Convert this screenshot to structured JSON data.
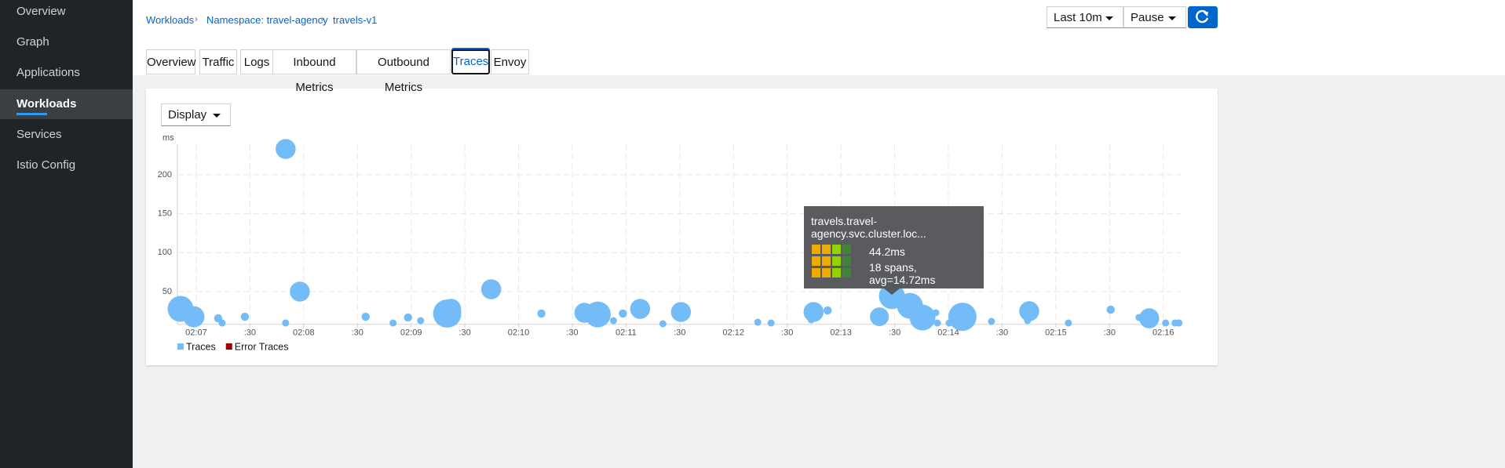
{
  "nav": {
    "items": [
      "Overview",
      "Graph",
      "Applications",
      "Workloads",
      "Services",
      "Istio Config"
    ],
    "active": 3
  },
  "breadcrumbs": [
    "Workloads",
    "Namespace: travel-agency",
    "travels-v1"
  ],
  "toolbar": {
    "interval": "Last 10m",
    "refresh": "Pause"
  },
  "tabs": {
    "items": [
      "Overview",
      "Traffic",
      "Logs",
      "Inbound Metrics",
      "Outbound Metrics",
      "Traces",
      "Envoy"
    ],
    "active": 5
  },
  "display": "Display",
  "tooltip": {
    "title": "travels.travel-agency.svc.cluster.loc...",
    "duration": "44.2ms",
    "spans": "18 spans, avg=14.72ms"
  },
  "chart_data": {
    "type": "scatter",
    "y_label": "ms",
    "xlim": [
      6.825,
      16.17
    ],
    "ylim": [
      8,
      240
    ],
    "xticks": [
      {
        "value": 7,
        "label": "02:07"
      },
      {
        "value": 7.5,
        "label": ":30"
      },
      {
        "value": 8,
        "label": "02:08"
      },
      {
        "value": 8.5,
        "label": ":30"
      },
      {
        "value": 9,
        "label": "02:09"
      },
      {
        "value": 9.5,
        "label": ":30"
      },
      {
        "value": 10,
        "label": "02:10"
      },
      {
        "value": 10.5,
        "label": ":30"
      },
      {
        "value": 11,
        "label": "02:11"
      },
      {
        "value": 11.5,
        "label": ":30"
      },
      {
        "value": 12,
        "label": "02:12"
      },
      {
        "value": 12.5,
        "label": ":30"
      },
      {
        "value": 13,
        "label": "02:13"
      },
      {
        "value": 13.5,
        "label": ":30"
      },
      {
        "value": 14,
        "label": "02:14"
      },
      {
        "value": 14.5,
        "label": ":30"
      },
      {
        "value": 15,
        "label": "02:15"
      },
      {
        "value": 15.5,
        "label": ":30"
      },
      {
        "value": 16,
        "label": "02:16"
      }
    ],
    "yticks": [
      50,
      100,
      150,
      200
    ],
    "grid": true,
    "series": [
      {
        "name": "Traces",
        "color": "#73bcf7",
        "x": [
          6.854,
          6.978,
          7.204,
          7.241,
          7.453,
          7.832,
          7.832,
          7.964,
          8.577,
          8.832,
          8.971,
          9.088,
          9.336,
          9.372,
          9.745,
          10.212,
          10.613,
          10.737,
          10.883,
          10.971,
          11.131,
          11.343,
          11.511,
          12.226,
          12.35,
          12.745,
          12.876,
          12.723,
          13.358,
          13.474,
          13.642,
          13.759,
          13.883,
          13.898,
          14.007,
          14.131,
          14.401,
          14.752,
          14.737,
          15.117,
          15.511,
          15.774,
          15.869,
          16.022,
          16.109,
          16.146
        ],
        "y": [
          27.8,
          17.7,
          15.7,
          9.7,
          17.7,
          233.2,
          9.7,
          50,
          17.7,
          9.7,
          16.7,
          12.7,
          21.8,
          27.8,
          53,
          21.8,
          22.8,
          20.7,
          12.7,
          21.8,
          27.8,
          8.7,
          23.8,
          10.7,
          9.7,
          23.8,
          25.8,
          13.7,
          17.7,
          44.2,
          31.8,
          16.7,
          22.8,
          9.7,
          9.7,
          17.7,
          11.7,
          24.8,
          12.7,
          9.7,
          26.8,
          16.7,
          15.7,
          9.7,
          9.7,
          9.7
        ],
        "size": [
          18,
          14,
          3,
          2,
          3,
          13,
          2,
          13,
          3,
          2,
          3,
          2,
          20,
          13,
          13,
          3,
          13,
          18,
          2,
          3,
          13,
          2,
          13,
          2,
          2,
          13,
          3,
          2,
          12,
          18,
          18,
          18,
          2,
          2,
          2,
          20,
          2,
          13,
          2,
          2,
          3,
          2,
          13,
          2,
          2,
          2
        ]
      },
      {
        "name": "Error Traces",
        "color": "#a30000",
        "x": [],
        "y": [],
        "size": []
      }
    ]
  }
}
